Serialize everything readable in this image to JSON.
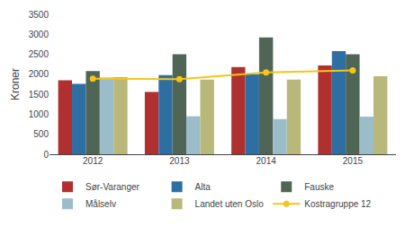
{
  "chart_data": {
    "type": "bar",
    "categories": [
      "2012",
      "2013",
      "2014",
      "2015"
    ],
    "series": [
      {
        "name": "Sør-Varanger",
        "color": "#b03030",
        "values": [
          1850,
          1560,
          2180,
          2220
        ]
      },
      {
        "name": "Alta",
        "color": "#2e6fa3",
        "values": [
          1760,
          1980,
          2000,
          2580
        ]
      },
      {
        "name": "Fauske",
        "color": "#4f6657",
        "values": [
          2080,
          2500,
          2920,
          2500
        ]
      },
      {
        "name": "Målselv",
        "color": "#9bbdca",
        "values": [
          1920,
          950,
          880,
          940
        ]
      },
      {
        "name": "Landet uten Oslo",
        "color": "#b8b87a",
        "values": [
          1930,
          1870,
          1870,
          1950
        ]
      },
      {
        "name": "Kostragruppe 12",
        "color": "#f5c518",
        "type": "line",
        "marker": "circle",
        "values": [
          1890,
          1880,
          2050,
          2100
        ]
      }
    ],
    "ylabel": "Kroner",
    "ylim": [
      0,
      3500
    ],
    "yticks": [
      0,
      500,
      1000,
      1500,
      2000,
      2500,
      3000,
      3500
    ],
    "grid": false,
    "legend": "bottom"
  }
}
